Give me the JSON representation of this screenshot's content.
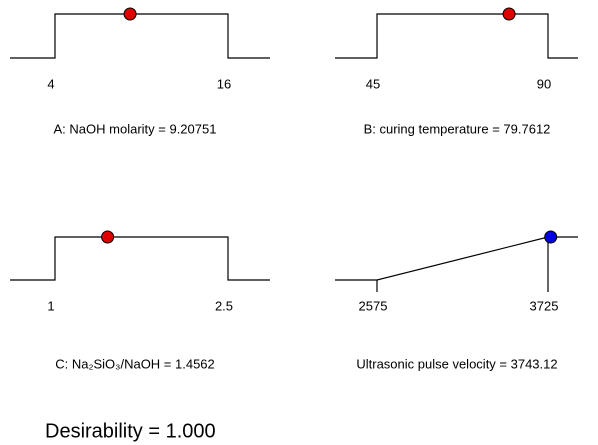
{
  "chart_data": [
    {
      "type": "range",
      "label": "A: NaOH molarity = 9.20751",
      "xlim": [
        4,
        16
      ],
      "xticks": [
        4,
        16
      ],
      "value": 9.20751,
      "color": "#e00000"
    },
    {
      "type": "range",
      "label": "B: curing temperature = 79.7612",
      "xlim": [
        45,
        90
      ],
      "xticks": [
        45,
        90
      ],
      "value": 79.7612,
      "color": "#e00000"
    },
    {
      "type": "range",
      "label": "C: Na₂SiO₃/NaOH = 1.4562",
      "xlim": [
        1,
        2.5
      ],
      "xticks": [
        1,
        2.5
      ],
      "value": 1.4562,
      "color": "#e00000"
    },
    {
      "type": "ramp",
      "label": "Ultrasonic pulse velocity = 3743.12",
      "xlim": [
        2575,
        3725
      ],
      "xticks": [
        2575,
        3725
      ],
      "value": 3743.12,
      "color": "#0000e0"
    }
  ],
  "desirability": "Desirability = 1.000"
}
